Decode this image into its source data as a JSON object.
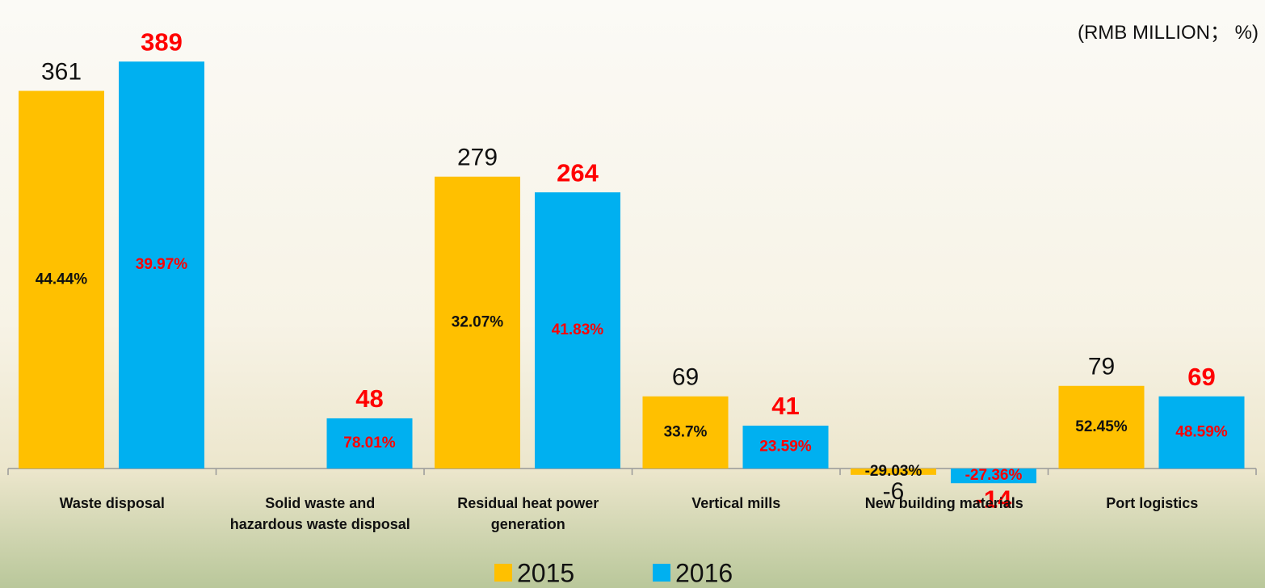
{
  "chart_data": {
    "type": "bar",
    "unit_note": "(RMB MILLION； %)",
    "categories": [
      "Waste disposal",
      "Solid waste and hazardous waste disposal",
      "Residual heat power generation",
      "Vertical mills",
      "New building materials",
      "Port logistics"
    ],
    "series": [
      {
        "name": "2015",
        "color": "#FFC000",
        "values": [
          361,
          null,
          279,
          69,
          -6,
          79
        ],
        "margins": [
          44.44,
          null,
          32.07,
          33.7,
          -29.03,
          52.45
        ],
        "margin_labels": [
          "44.44%",
          null,
          "32.07%",
          "33.7%",
          "-29.03%",
          "52.45%"
        ]
      },
      {
        "name": "2016",
        "color": "#00B0F0",
        "values": [
          389,
          48,
          264,
          41,
          -14,
          69
        ],
        "margins": [
          39.97,
          78.01,
          41.83,
          23.59,
          -27.36,
          48.59
        ],
        "margin_labels": [
          "39.97%",
          "78.01%",
          "41.83%",
          "23.59%",
          "-27.36%",
          "48.59%"
        ]
      }
    ],
    "ylim": [
      -20,
      400
    ],
    "legend": "bottom"
  }
}
